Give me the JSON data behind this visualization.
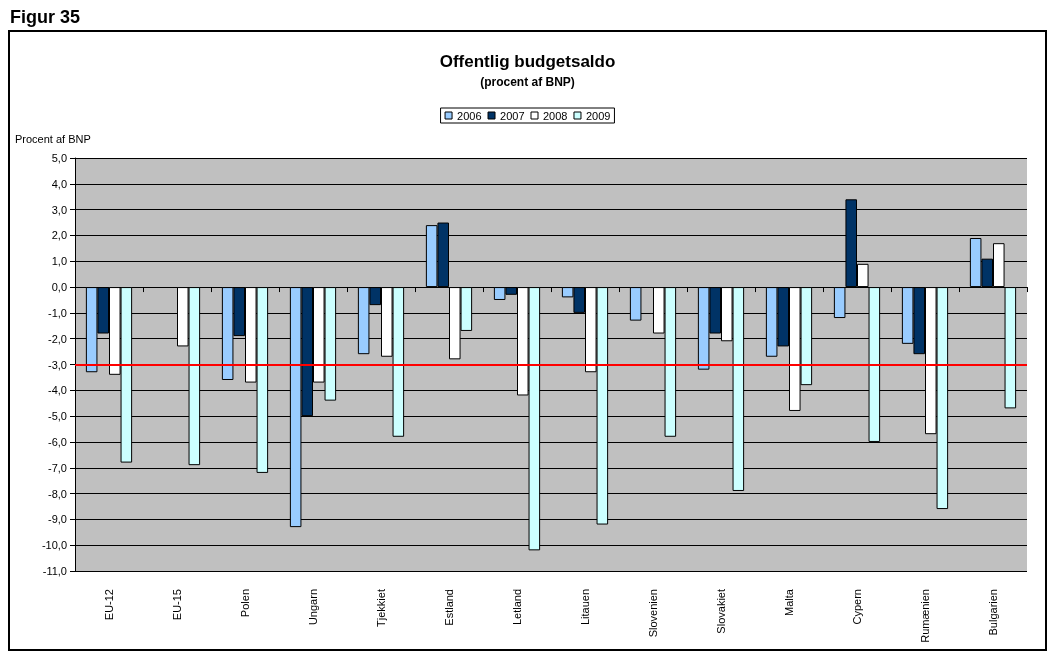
{
  "chart_data": {
    "type": "bar",
    "title": "Offentlig budgetsaldo",
    "subtitle": "(procent af BNP)",
    "ylabel": "Procent af BNP",
    "annotations": [
      "Figur 35"
    ],
    "categories": [
      "EU-12",
      "EU-15",
      "Polen",
      "Ungarn",
      "Tjekkiet",
      "Estland",
      "Letland",
      "Litauen",
      "Slovenien",
      "Slovakiet",
      "Malta",
      "Cypern",
      "Rumænien",
      "Bulgarien"
    ],
    "series": [
      {
        "name": "2006",
        "color": "#99ccff",
        "values": [
          -3.3,
          null,
          -3.6,
          -9.3,
          -2.6,
          2.4,
          -0.5,
          -0.4,
          -1.3,
          -3.2,
          -2.7,
          -1.2,
          -2.2,
          1.9
        ]
      },
      {
        "name": "2007",
        "color": "#003366",
        "values": [
          -1.8,
          null,
          -1.9,
          -5.0,
          -0.7,
          2.5,
          -0.3,
          -1.0,
          null,
          -1.8,
          -2.3,
          3.4,
          -2.6,
          1.1
        ]
      },
      {
        "name": "2008",
        "color": "#ffffff",
        "values": [
          -3.4,
          -2.3,
          -3.7,
          -3.7,
          -2.7,
          -2.8,
          -4.2,
          -3.3,
          -1.8,
          -2.1,
          -4.8,
          0.9,
          -5.7,
          1.7
        ]
      },
      {
        "name": "2009",
        "color": "#ccffff",
        "values": [
          -6.8,
          -6.9,
          -7.2,
          -4.4,
          -5.8,
          -1.7,
          -10.2,
          -9.2,
          -5.8,
          -7.9,
          -3.8,
          -6.0,
          -8.6,
          -4.7
        ]
      }
    ],
    "ylim": [
      -11,
      5
    ],
    "yticks": [
      {
        "value": -11,
        "label": "-11,0"
      },
      {
        "value": -10,
        "label": "-10,0"
      },
      {
        "value": -9,
        "label": "-9,0"
      },
      {
        "value": -8,
        "label": "-8,0"
      },
      {
        "value": -7,
        "label": "-7,0"
      },
      {
        "value": -6,
        "label": "-6,0"
      },
      {
        "value": -5,
        "label": "-5,0"
      },
      {
        "value": -4,
        "label": "-4,0"
      },
      {
        "value": -3,
        "label": "-3,0"
      },
      {
        "value": -2,
        "label": "-2,0"
      },
      {
        "value": -1,
        "label": "-1,0"
      },
      {
        "value": 0,
        "label": "0,0"
      },
      {
        "value": 1,
        "label": "1,0"
      },
      {
        "value": 2,
        "label": "2,0"
      },
      {
        "value": 3,
        "label": "3,0"
      },
      {
        "value": 4,
        "label": "4,0"
      },
      {
        "value": 5,
        "label": "5,0"
      }
    ],
    "ref_lines": [
      {
        "axis": "y",
        "value": -3,
        "color": "#ff0000"
      }
    ],
    "grid": "y",
    "legend": "top"
  }
}
